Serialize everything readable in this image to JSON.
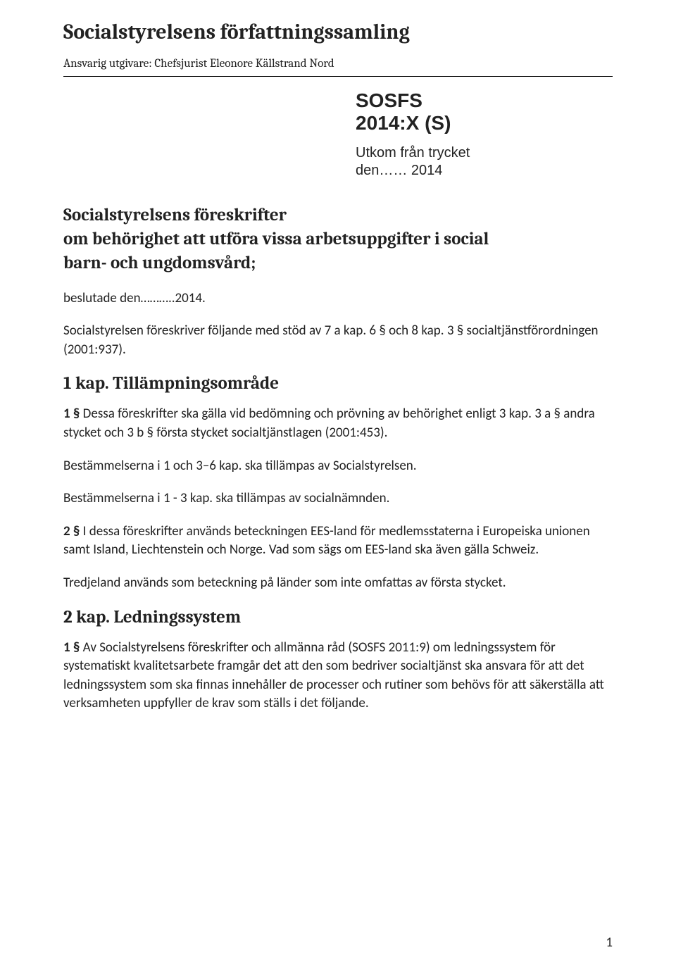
{
  "header": {
    "doc_title": "Socialstyrelsens författningssamling",
    "responsible": "Ansvarig utgivare: Chefsjurist Eleonore Källstrand Nord",
    "sosfs_line1": "SOSFS",
    "sosfs_line2": "2014:X (S)",
    "print_line1": "Utkom från trycket",
    "print_line2": "den…… 2014"
  },
  "regulation_title": {
    "l1": "Socialstyrelsens föreskrifter",
    "l2": "om behörighet att utföra vissa arbetsuppgifter i social",
    "l3": "barn- och ungdomsvård;"
  },
  "decided": "beslutade den………..2014.",
  "prescribes": "Socialstyrelsen föreskriver följande med stöd av 7 a kap. 6 § och 8 kap. 3 § socialtjänstförordningen (2001:937).",
  "chapters": {
    "ch1_heading": "1 kap. Tillämpningsområde",
    "ch1_para1_label": "1 §",
    "ch1_para1_text": " Dessa föreskrifter ska gälla vid bedömning och prövning av behörighet enligt 3 kap. 3 a § andra stycket och 3 b § första stycket socialtjänstlagen (2001:453).",
    "ch1_note1": "Bestämmelserna i 1 och 3–6 kap. ska tillämpas av Socialstyrelsen.",
    "ch1_note2": "Bestämmelserna i 1 - 3 kap. ska tillämpas av socialnämnden.",
    "ch1_para2_label": "2 §",
    "ch1_para2_text": " I dessa föreskrifter används beteckningen EES-land för medlemsstaterna i Europeiska unionen samt Island, Liechtenstein och Norge. Vad som sägs om EES-land ska även gälla Schweiz.",
    "ch1_third": "Tredjeland används som beteckning på länder som inte omfattas av första stycket.",
    "ch2_heading": "2 kap. Ledningssystem",
    "ch2_para1_label": "1 §",
    "ch2_para1_text": " Av Socialstyrelsens föreskrifter och allmänna råd (SOSFS 2011:9) om ledningssystem för systematiskt kvalitetsarbete framgår det att den som bedriver socialtjänst ska ansvara för att det ledningssystem som ska finnas innehåller de processer och rutiner som behövs för att säkerställa att verksamheten uppfyller de krav som ställs i det följande."
  },
  "page_number": "1"
}
